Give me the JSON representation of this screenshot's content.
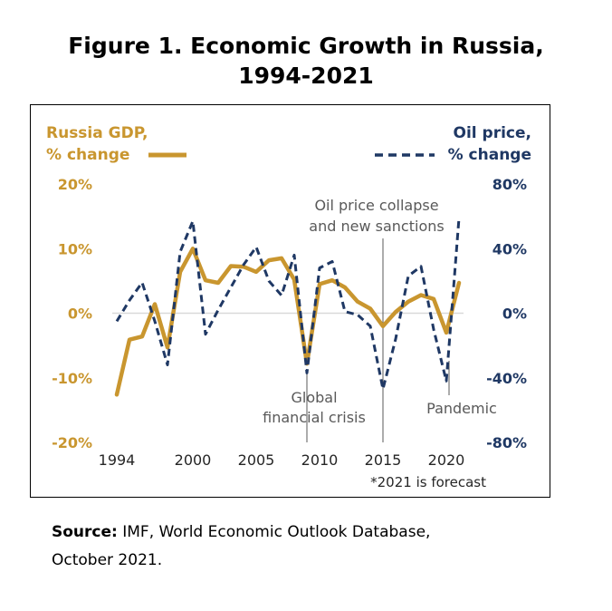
{
  "figure": {
    "title_line1": "Figure 1. Economic Growth in Russia,",
    "title_line2": "1994-2021"
  },
  "source": {
    "label": "Source:",
    "line1": " IMF, World Economic Outlook Database,",
    "line2": "October 2021."
  },
  "colors": {
    "gdp": "#C9962F",
    "oil": "#1F3864",
    "annotation": "#595959",
    "gridline": "#D9D9D9"
  },
  "chart_data": {
    "type": "line",
    "x": [
      1994,
      1995,
      1996,
      1997,
      1998,
      1999,
      2000,
      2001,
      2002,
      2003,
      2004,
      2005,
      2006,
      2007,
      2008,
      2009,
      2010,
      2011,
      2012,
      2013,
      2014,
      2015,
      2016,
      2017,
      2018,
      2019,
      2020,
      2021
    ],
    "series": [
      {
        "name": "Russia GDP, % change",
        "axis": "left",
        "style": "solid",
        "values": [
          -12.6,
          -4.1,
          -3.6,
          1.4,
          -5.3,
          6.4,
          10.0,
          5.1,
          4.7,
          7.3,
          7.2,
          6.4,
          8.2,
          8.5,
          5.2,
          -7.8,
          4.5,
          5.1,
          4.0,
          1.8,
          0.7,
          -2.0,
          0.2,
          1.8,
          2.8,
          2.2,
          -3.0,
          4.7
        ]
      },
      {
        "name": "Oil price, % change",
        "axis": "right",
        "style": "dashed",
        "values": [
          -5,
          8,
          19,
          -5,
          -32,
          38,
          57,
          -13,
          2,
          16,
          30,
          41,
          20,
          11,
          36,
          -37,
          28,
          32,
          1,
          -1,
          -8,
          -47,
          -16,
          23,
          29,
          -10,
          -42,
          59
        ]
      }
    ],
    "left_axis": {
      "title_line1": "Russia GDP,",
      "title_line2": "% change",
      "range": [
        -20,
        20
      ],
      "ticks": [
        {
          "value": 20,
          "label": "20%"
        },
        {
          "value": 10,
          "label": "10%"
        },
        {
          "value": 0,
          "label": "0%"
        },
        {
          "value": -10,
          "label": "-10%"
        },
        {
          "value": -20,
          "label": "-20%"
        }
      ]
    },
    "right_axis": {
      "title_line1": "Oil price,",
      "title_line2": "% change",
      "range": [
        -80,
        80
      ],
      "ticks": [
        {
          "value": 80,
          "label": "80%"
        },
        {
          "value": 40,
          "label": "40%"
        },
        {
          "value": 0,
          "label": "0%"
        },
        {
          "value": -40,
          "label": "-40%"
        },
        {
          "value": -80,
          "label": "-80%"
        }
      ]
    },
    "x_axis": {
      "range": [
        1994,
        2021
      ],
      "ticks": [
        {
          "value": 1994,
          "label": "1994"
        },
        {
          "value": 2000,
          "label": "2000"
        },
        {
          "value": 2005,
          "label": "2005"
        },
        {
          "value": 2010,
          "label": "2010"
        },
        {
          "value": 2015,
          "label": "2015"
        },
        {
          "value": 2020,
          "label": "2020"
        }
      ]
    },
    "annotations": {
      "oil_collapse": {
        "year": 2015,
        "line1": "Oil price collapse",
        "line2": "and new sanctions"
      },
      "gfc": {
        "year": 2009,
        "line1": "Global",
        "line2": "financial crisis"
      },
      "pandemic": {
        "year": 2020,
        "text": "Pandemic"
      },
      "forecast_note": "*2021 is forecast"
    },
    "zero_gridline": true,
    "legend_placement": "top-left and top-right"
  }
}
